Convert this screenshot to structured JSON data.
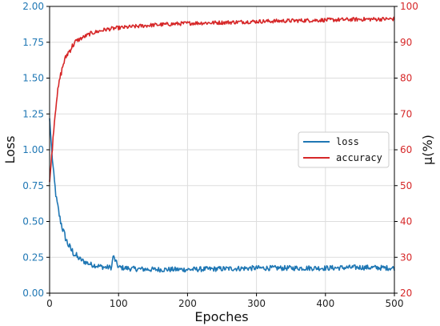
{
  "chart_data": {
    "type": "line",
    "xlabel": "Epoches",
    "ylabel_left": "Loss",
    "ylabel_right": "μ(%)",
    "xlim": [
      0,
      500
    ],
    "ylim_left": [
      0.0,
      2.0
    ],
    "ylim_right": [
      20,
      100
    ],
    "x_ticks": [
      "0",
      "100",
      "200",
      "300",
      "400",
      "500"
    ],
    "y_ticks_left": [
      "0.00",
      "0.25",
      "0.50",
      "0.75",
      "1.00",
      "1.25",
      "1.50",
      "1.75",
      "2.00"
    ],
    "y_ticks_right": [
      "20",
      "30",
      "40",
      "50",
      "60",
      "70",
      "80",
      "90",
      "100"
    ],
    "grid": true,
    "legend_position": "center-right",
    "series": [
      {
        "name": "loss",
        "axis": "left",
        "color": "#1f77b4",
        "x": [
          0,
          3,
          6,
          10,
          15,
          20,
          25,
          30,
          35,
          40,
          50,
          60,
          70,
          80,
          90,
          92,
          100,
          120,
          150,
          180,
          200,
          250,
          300,
          350,
          400,
          450,
          500
        ],
        "y": [
          1.22,
          1.0,
          0.82,
          0.65,
          0.52,
          0.43,
          0.36,
          0.31,
          0.28,
          0.25,
          0.22,
          0.2,
          0.19,
          0.18,
          0.18,
          0.26,
          0.18,
          0.17,
          0.165,
          0.165,
          0.165,
          0.17,
          0.175,
          0.175,
          0.175,
          0.18,
          0.175
        ]
      },
      {
        "name": "accuracy",
        "axis": "right",
        "color": "#d62728",
        "x": [
          0,
          3,
          6,
          10,
          15,
          20,
          25,
          30,
          35,
          40,
          50,
          60,
          70,
          80,
          90,
          100,
          130,
          150,
          200,
          250,
          300,
          350,
          400,
          450,
          500
        ],
        "y": [
          51,
          58,
          66,
          74,
          80,
          84,
          86.5,
          88,
          89.5,
          90.5,
          91.5,
          92.5,
          93,
          93.5,
          93.8,
          94,
          94.5,
          94.8,
          95.3,
          95.5,
          95.8,
          96,
          96.2,
          96.4,
          96.5
        ]
      }
    ]
  }
}
